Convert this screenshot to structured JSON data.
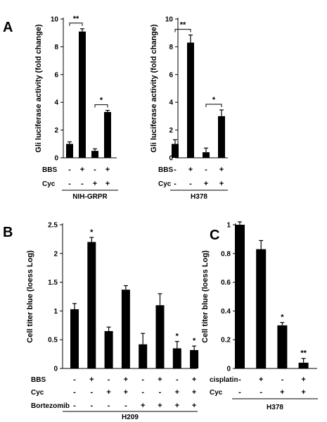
{
  "chart_data": [
    {
      "type": "bar",
      "panel": "A",
      "ylabel": "Gli luciferase activity (fold change)",
      "ylim": [
        0,
        10
      ],
      "yticks": [
        0,
        2,
        4,
        6,
        8,
        10
      ],
      "values": [
        1.0,
        9.1,
        0.5,
        3.3
      ],
      "errors": [
        0.15,
        0.2,
        0.15,
        0.12
      ],
      "conditions": [
        {
          "label": "BBS",
          "signs": [
            "-",
            "+",
            "-",
            "+"
          ]
        },
        {
          "label": "Cyc",
          "signs": [
            "-",
            "-",
            "+",
            "+"
          ]
        }
      ],
      "group_label": "NIH-GRPR",
      "significance": [
        {
          "bars": [
            0,
            1
          ],
          "label": "**"
        },
        {
          "bars": [
            2,
            3
          ],
          "label": "*"
        }
      ]
    },
    {
      "type": "bar",
      "panel": "",
      "ylabel": "Gli luciferase activity (fold change)",
      "ylim": [
        0,
        10
      ],
      "yticks": [
        0,
        2,
        4,
        6,
        8,
        10
      ],
      "values": [
        1.0,
        8.3,
        0.4,
        3.0
      ],
      "errors": [
        0.3,
        0.55,
        0.3,
        0.45
      ],
      "conditions": [
        {
          "label": "BBS",
          "signs": [
            "-",
            "+",
            "-",
            "+"
          ]
        },
        {
          "label": "Cyc",
          "signs": [
            "-",
            "-",
            "+",
            "+"
          ]
        }
      ],
      "group_label": "H378",
      "significance": [
        {
          "bars": [
            0,
            1
          ],
          "label": "**"
        },
        {
          "bars": [
            2,
            3
          ],
          "label": "*"
        }
      ]
    },
    {
      "type": "bar",
      "panel": "B",
      "ylabel": "Cell titer blue (loess Log)",
      "ylim": [
        0,
        2.5
      ],
      "yticks": [
        "0",
        "0.5",
        "1",
        "1.5",
        "2",
        "2.5"
      ],
      "values": [
        1.03,
        2.2,
        0.65,
        1.37,
        0.42,
        1.1,
        0.35,
        0.32
      ],
      "errors": [
        0.1,
        0.08,
        0.07,
        0.07,
        0.19,
        0.2,
        0.12,
        0.07
      ],
      "conditions": [
        {
          "label": "BBS",
          "signs": [
            "-",
            "+",
            "-",
            "+",
            "-",
            "+",
            "-",
            "+"
          ]
        },
        {
          "label": "Cyc",
          "signs": [
            "-",
            "-",
            "+",
            "+",
            "-",
            "-",
            "+",
            "+"
          ]
        },
        {
          "label": "Bortezomib",
          "signs": [
            "-",
            "-",
            "-",
            "-",
            "+",
            "+",
            "+",
            "+"
          ]
        }
      ],
      "group_label": "H209",
      "stars": [
        "",
        "*",
        "",
        "",
        "",
        "",
        "*",
        "*"
      ]
    },
    {
      "type": "bar",
      "panel": "C",
      "ylabel": "Cell titer blue (loess Log)",
      "ylim": [
        0,
        1
      ],
      "yticks": [
        "0",
        "0.2",
        "0.4",
        "0.6",
        "0.8",
        "1"
      ],
      "values": [
        1.0,
        0.83,
        0.3,
        0.04
      ],
      "errors": [
        0.02,
        0.06,
        0.02,
        0.03
      ],
      "conditions": [
        {
          "label": "cisplatin",
          "signs": [
            "-",
            "+",
            "-",
            "+"
          ]
        },
        {
          "label": "Cyc",
          "signs": [
            "-",
            "-",
            "+",
            "+"
          ]
        }
      ],
      "group_label": "H378",
      "stars": [
        "",
        "",
        "*",
        "**"
      ]
    }
  ]
}
